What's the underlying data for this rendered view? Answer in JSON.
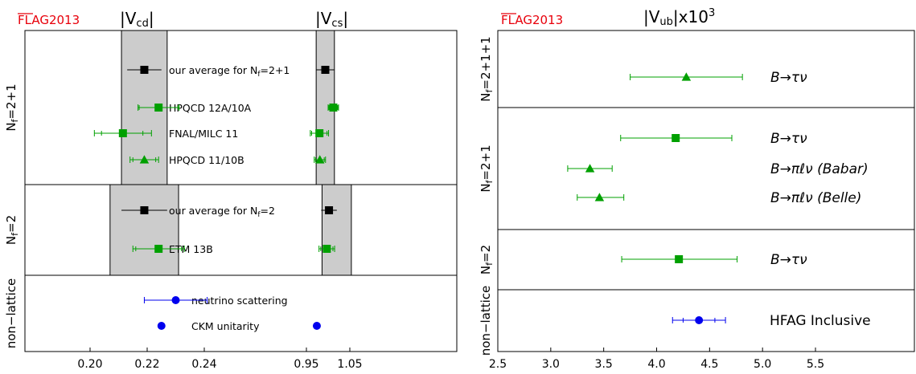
{
  "chart_data": [
    {
      "type": "scatter",
      "logo": "FLAG2013",
      "title_vcd": "|V",
      "title_vcd_sub": "cd",
      "title_vcs": "|V",
      "title_vcs_sub": "cs",
      "xticks_vcd": [
        "0.20",
        "0.22",
        "0.24"
      ],
      "xticks_vcs": [
        "0.95",
        "1.05"
      ],
      "group_labels": [
        {
          "label": "N",
          "sub": "f",
          "suffix": "=2+1"
        },
        {
          "label": "N",
          "sub": "f",
          "suffix": "=2"
        },
        {
          "label": "non−lattice",
          "sub": "",
          "suffix": ""
        }
      ],
      "rows": [
        {
          "label": "our average for N",
          "label_sub": "f",
          "label_suffix": "=2+1",
          "marker": "square",
          "color": "#000000",
          "vcd": {
            "x": 0.219,
            "err_low": 0.006,
            "err_high": 0.006
          },
          "vcs": {
            "x": 0.9935,
            "err_low": 0.021,
            "err_high": 0.021
          }
        },
        {
          "label": "HPQCD 12A/10A",
          "label_sub": "",
          "label_suffix": "",
          "marker": "square",
          "color": "#00a000",
          "vcd": {
            "x": 0.224,
            "err_low": 0.0072,
            "err_high": 0.0072
          },
          "vcs": {
            "x": 1.012,
            "err_low": 0.012,
            "err_high": 0.012
          },
          "vcd_inner": {
            "low": 0.2172,
            "high": 0.2308
          },
          "vcs_inner": {
            "low": 1.002,
            "high": 1.022
          }
        },
        {
          "label": "FNAL/MILC 11",
          "label_sub": "",
          "label_suffix": "",
          "marker": "square",
          "color": "#00a000",
          "vcd": {
            "x": 0.2115,
            "err_low": 0.01,
            "err_high": 0.01
          },
          "vcs": {
            "x": 0.98,
            "err_low": 0.021,
            "err_high": 0.021
          },
          "vcd_inner": {
            "low": 0.204,
            "high": 0.2185
          },
          "vcs_inner": {
            "low": 0.962,
            "high": 0.9975
          }
        },
        {
          "label": "HPQCD 11/10B",
          "label_sub": "",
          "label_suffix": "",
          "marker": "triangle",
          "color": "#00a000",
          "vcd": {
            "x": 0.219,
            "err_low": 0.005,
            "err_high": 0.005
          },
          "vcs": {
            "x": 0.981,
            "err_low": 0.013,
            "err_high": 0.013
          },
          "vcd_inner": {
            "low": 0.215,
            "high": 0.223
          },
          "vcs_inner": {
            "low": 0.971,
            "high": 0.991
          }
        },
        {
          "label": "our average for N",
          "label_sub": "f",
          "label_suffix": "=2",
          "marker": "square",
          "color": "#000000",
          "vcd": {
            "x": 0.219,
            "err_low": 0.008,
            "err_high": 0.008
          },
          "vcs": {
            "x": 1.002,
            "err_low": 0.018,
            "err_high": 0.018
          }
        },
        {
          "label": "ETM 13B",
          "label_sub": "",
          "label_suffix": "",
          "marker": "square",
          "color": "#00a000",
          "vcd": {
            "x": 0.224,
            "err_low": 0.009,
            "err_high": 0.009
          },
          "vcs": {
            "x": 0.997,
            "err_low": 0.018,
            "err_high": 0.018
          },
          "vcd_inner": {
            "low": 0.216,
            "high": 0.232
          },
          "vcs_inner": {
            "low": 0.983,
            "high": 1.011
          }
        },
        {
          "label": "neutrino scattering",
          "label_sub": "",
          "label_suffix": "",
          "marker": "circle",
          "color": "#0000ee",
          "vcd": {
            "x": 0.23,
            "err_low": 0.011,
            "err_high": 0.011
          }
        },
        {
          "label": "CKM unitarity",
          "label_sub": "",
          "label_suffix": "",
          "marker": "circle",
          "color": "#0000ee",
          "vcd": {
            "x": 0.225,
            "err_low": 0,
            "err_high": 0
          },
          "vcs": {
            "x": 0.974,
            "err_low": 0,
            "err_high": 0
          }
        }
      ],
      "bands": {
        "nf211": {
          "vcd": [
            0.211,
            0.227
          ],
          "vcs": [
            0.9725,
            1.0145
          ]
        },
        "nf2": {
          "vcd": [
            0.207,
            0.231
          ],
          "vcs": [
            0.986,
            1.0535
          ]
        }
      }
    },
    {
      "type": "scatter",
      "logo": "FLAG2013",
      "title": "|V",
      "title_sub": "ub",
      "title_suffix": "|x10",
      "title_sup": "3",
      "xticks": [
        "2.5",
        "3.0",
        "3.5",
        "4.0",
        "4.5",
        "5.0",
        "5.5"
      ],
      "group_labels": [
        {
          "label": "N",
          "sub": "f",
          "suffix": "=2+1+1"
        },
        {
          "label": "N",
          "sub": "f",
          "suffix": "=2+1"
        },
        {
          "label": "N",
          "sub": "f",
          "suffix": "=2"
        },
        {
          "label": "non−lattice",
          "sub": "",
          "suffix": ""
        }
      ],
      "rows": [
        {
          "label": "B→τν",
          "marker": "triangle",
          "color": "#00a000",
          "x": 4.28,
          "low": 3.75,
          "high": 4.81,
          "inner_low": 3.75,
          "inner_high": 4.81
        },
        {
          "label": "B→τν",
          "marker": "square",
          "color": "#00a000",
          "x": 4.18,
          "low": 3.66,
          "high": 4.71,
          "inner_low": 3.66,
          "inner_high": 4.71
        },
        {
          "label": "B→πℓν (Babar)",
          "marker": "triangle",
          "color": "#00a000",
          "x": 3.37,
          "low": 3.16,
          "high": 3.58,
          "inner_low": 3.16,
          "inner_high": 3.58
        },
        {
          "label": "B→πℓν (Belle)",
          "marker": "triangle",
          "color": "#00a000",
          "x": 3.46,
          "low": 3.25,
          "high": 3.69,
          "inner_low": 3.25,
          "inner_high": 3.69
        },
        {
          "label": "B→τν",
          "marker": "square",
          "color": "#00a000",
          "x": 4.21,
          "low": 3.67,
          "high": 4.76,
          "inner_low": 3.67,
          "inner_high": 4.76
        },
        {
          "label": "HFAG Inclusive",
          "marker": "circle",
          "color": "#0000ee",
          "x": 4.4,
          "low": 4.15,
          "high": 4.65,
          "inner_low": 4.25,
          "inner_high": 4.55
        }
      ]
    }
  ]
}
